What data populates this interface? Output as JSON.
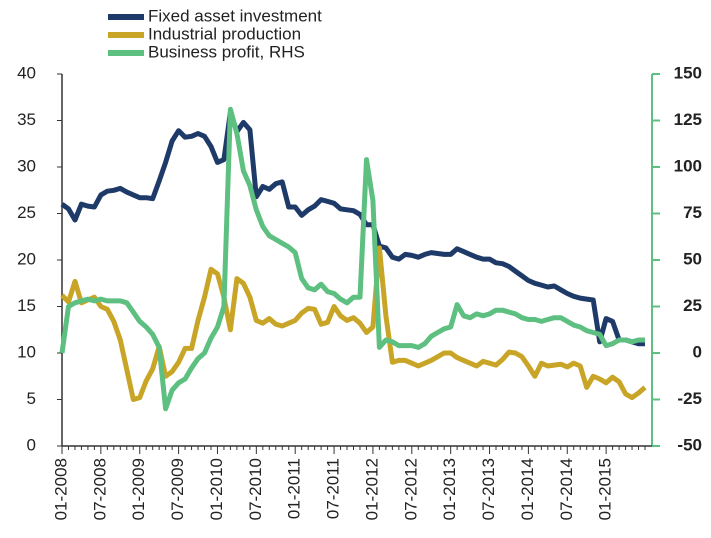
{
  "chart_data": {
    "type": "line",
    "categories": [
      "01-2008",
      null,
      null,
      null,
      null,
      null,
      "07-2008",
      null,
      null,
      null,
      null,
      null,
      "01-2009",
      null,
      null,
      null,
      null,
      null,
      "07-2009",
      null,
      null,
      null,
      null,
      null,
      "01-2010",
      null,
      null,
      null,
      null,
      null,
      "07-2010",
      null,
      null,
      null,
      null,
      null,
      "01-2011",
      null,
      null,
      null,
      null,
      null,
      "07-2011",
      null,
      null,
      null,
      null,
      null,
      "01-2012",
      null,
      null,
      null,
      null,
      null,
      "07-2012",
      null,
      null,
      null,
      null,
      null,
      "01-2013",
      null,
      null,
      null,
      null,
      null,
      "07-2013",
      null,
      null,
      null,
      null,
      null,
      "01-2014",
      null,
      null,
      null,
      null,
      null,
      "07-2014",
      null,
      null,
      null,
      null,
      null,
      "01-2015",
      null,
      null,
      null,
      null,
      null,
      null
    ],
    "series": [
      {
        "name": "Fixed asset investment",
        "color": "#1e3a68",
        "values": [
          26,
          25.5,
          24.3,
          26,
          25.8,
          25.7,
          27,
          27.4,
          27.5,
          27.7,
          27.3,
          27,
          26.7,
          26.7,
          26.6,
          28.5,
          30.5,
          32.8,
          33.9,
          33.2,
          33.3,
          33.6,
          33.3,
          32.2,
          30.5,
          30.8,
          35.9,
          33.8,
          34.8,
          34,
          26.8,
          27.9,
          27.6,
          28.2,
          28.4,
          25.7,
          25.7,
          24.8,
          25.4,
          25.8,
          26.5,
          26.3,
          26.1,
          25.5,
          25.4,
          25.3,
          24.9,
          23.8,
          23.8,
          21.5,
          21.3,
          20.3,
          20.1,
          20.6,
          20.5,
          20.3,
          20.6,
          20.8,
          20.7,
          20.6,
          20.6,
          21.2,
          20.9,
          20.6,
          20.3,
          20.1,
          20.1,
          19.7,
          19.6,
          19.3,
          18.8,
          18.3,
          17.8,
          17.5,
          17.3,
          17.1,
          17.2,
          16.8,
          16.4,
          16.1,
          15.9,
          15.8,
          15.7,
          11.2,
          13.7,
          13.4,
          11.4,
          11.4,
          11.2,
          11,
          11
        ]
      },
      {
        "name": "Industrial production",
        "color": "#c9a527",
        "values": [
          16.2,
          15.5,
          17.7,
          15.4,
          15.7,
          16,
          15,
          14.7,
          13.4,
          11.4,
          8.2,
          5,
          5.2,
          7,
          8.3,
          10.7,
          7.5,
          8,
          9,
          10.5,
          10.5,
          13.5,
          16,
          19,
          18.5,
          16,
          12.5,
          18,
          17.5,
          16,
          13.5,
          13.2,
          13.7,
          13.1,
          12.9,
          13.2,
          13.5,
          14.3,
          14.8,
          14.7,
          13.1,
          13.3,
          15,
          14,
          13.5,
          13.8,
          13.2,
          12.2,
          12.8,
          21.3,
          14,
          9,
          9.2,
          9.2,
          8.9,
          8.6,
          8.9,
          9.2,
          9.6,
          10,
          10,
          9.5,
          9.2,
          8.9,
          8.6,
          9.1,
          8.9,
          8.7,
          9.3,
          10.1,
          10,
          9.6,
          8.6,
          7.5,
          8.9,
          8.6,
          8.7,
          8.8,
          8.5,
          8.9,
          8.6,
          6.3,
          7.5,
          7.2,
          6.8,
          7.4,
          6.9,
          5.6,
          5.2,
          5.7,
          6.3
        ]
      },
      {
        "name": "Business profit, RHS",
        "color": "#5dbf80",
        "axis": "y2",
        "values": [
          0,
          25,
          27,
          28,
          29,
          28,
          29,
          28,
          28,
          28,
          27,
          22,
          17,
          14,
          10,
          3,
          -30,
          -20,
          -16,
          -14,
          -8,
          -3,
          0,
          8,
          14,
          25,
          131,
          118,
          98,
          90,
          77,
          68,
          63,
          61,
          59,
          57,
          54,
          40,
          35,
          34,
          37,
          33,
          32,
          29,
          27,
          30,
          30,
          104,
          82,
          3,
          7,
          6,
          4,
          4,
          4,
          3,
          5,
          9,
          11,
          13,
          14,
          26,
          20,
          19,
          21,
          20,
          21,
          23,
          23,
          22,
          21,
          19,
          18,
          18,
          17,
          18,
          19,
          19,
          17,
          15,
          14,
          12,
          11,
          10,
          4,
          5,
          7,
          7,
          6,
          7,
          7
        ]
      }
    ],
    "ylim": [
      0,
      40
    ],
    "yticks": [
      0,
      5,
      10,
      15,
      20,
      25,
      30,
      35,
      40
    ],
    "y2lim": [
      -50,
      150
    ],
    "y2ticks": [
      -50,
      -25,
      0,
      25,
      50,
      75,
      100,
      125,
      150
    ],
    "legend": "top-left"
  }
}
